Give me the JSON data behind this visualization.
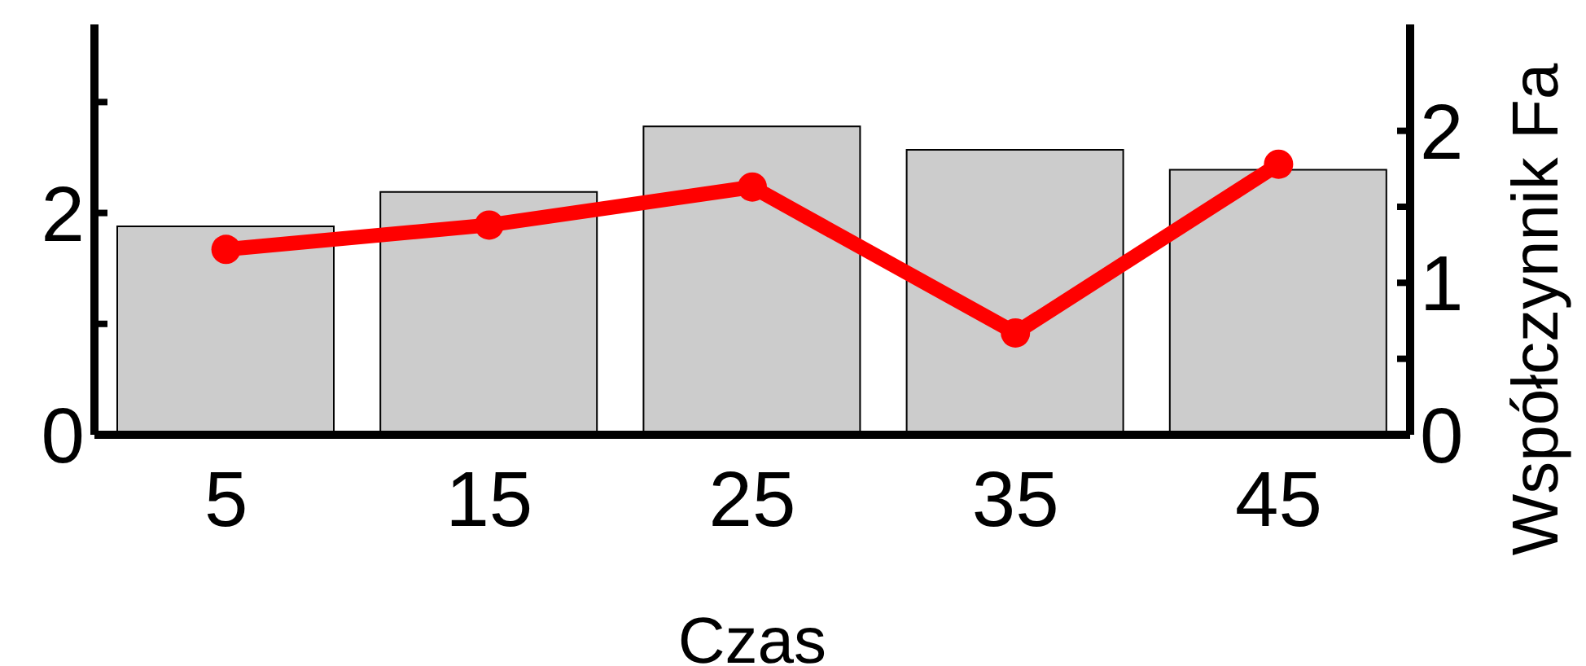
{
  "chart_data": {
    "type": "bar",
    "xlabel": "Czas",
    "y2label": "Współczynnik Fa",
    "categories": [
      "5",
      "15",
      "25",
      "35",
      "45"
    ],
    "series": [
      {
        "color": "#cccccc",
        "values": [
          1.88,
          2.19,
          2.78,
          2.57,
          2.39
        ]
      },
      {
        "type": "line",
        "axis": "y2",
        "color": "#ff0000",
        "marker": "circle",
        "values": [
          1.22,
          1.38,
          1.63,
          0.67,
          1.78
        ]
      }
    ],
    "ylim": [
      0,
      3.7
    ],
    "yticks": [
      0,
      {
        "value": 1,
        "label": null
      },
      2,
      {
        "value": 3,
        "label": null
      }
    ],
    "y2lim": [
      0,
      2.7
    ],
    "y2ticks": [
      0,
      {
        "value": 0.5,
        "label": null
      },
      1,
      {
        "value": 1.5,
        "label": null
      },
      2
    ],
    "grid": false,
    "legend": false
  }
}
